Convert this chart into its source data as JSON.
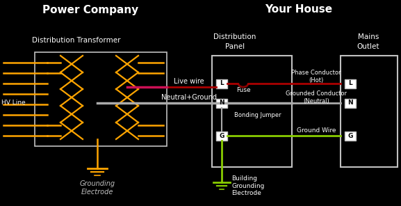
{
  "bg_color": "#000000",
  "title_left": "Power Company",
  "title_right": "Your House",
  "subtitle_dist": "Distribution Transformer",
  "subtitle_panel": "Distribution\nPanel",
  "subtitle_outlet": "Mains\nOutlet",
  "hv_line_label": "HV Line",
  "live_wire_label": "Live wire",
  "neutral_label": "Neutral+Ground",
  "grounding_electrode_label": "Grounding\nElectrode",
  "building_grounding_label": "Building\nGrounding\nElectrode",
  "bonding_jumper_label": "Bonding Jumper",
  "phase_conductor_label": "Phase Conductor\n(Hot)",
  "grounded_conductor_label": "Grounded Conductor\n(Neutral)",
  "ground_wire_label": "Ground Wire",
  "fuse_label": "Fuse",
  "orange": "#FFA500",
  "red": "#AA0000",
  "pink": "#CC1155",
  "gray": "#AAAAAA",
  "green": "#88CC00",
  "white": "#FFFFFF",
  "silver": "#C0C0C0"
}
